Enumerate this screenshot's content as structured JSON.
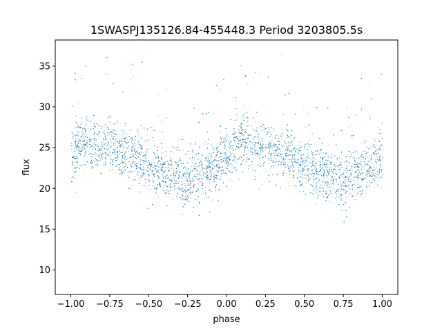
{
  "chart_data": {
    "type": "scatter",
    "title": "1SWASPJ135126.84-455448.3 Period 3203805.5s",
    "xlabel": "phase",
    "ylabel": "flux",
    "xlim": [
      -1.1,
      1.1
    ],
    "ylim": [
      7,
      38.2
    ],
    "xticks": [
      -1.0,
      -0.75,
      -0.5,
      -0.25,
      0.0,
      0.25,
      0.5,
      0.75,
      1.0
    ],
    "xtick_labels": [
      "−1.00",
      "−0.75",
      "−0.50",
      "−0.25",
      "0.00",
      "0.25",
      "0.50",
      "0.75",
      "1.00"
    ],
    "yticks": [
      10,
      15,
      20,
      25,
      30,
      35
    ],
    "ytick_labels": [
      "10",
      "15",
      "20",
      "25",
      "30",
      "35"
    ],
    "grid": false,
    "marker_color": "#1f77b4",
    "series": [
      {
        "x": [
          -1.0,
          -0.95,
          -0.9,
          -0.85,
          -0.8,
          -0.75,
          -0.7,
          -0.65,
          -0.6,
          -0.55,
          -0.5,
          -0.45,
          -0.4,
          -0.35,
          -0.3,
          -0.25,
          -0.2,
          -0.15,
          -0.1,
          -0.05,
          0.0,
          0.05,
          0.1,
          0.15,
          0.2,
          0.25,
          0.3,
          0.35,
          0.4,
          0.45,
          0.5,
          0.55,
          0.6,
          0.65,
          0.7,
          0.75,
          0.8,
          0.85,
          0.9,
          0.95,
          1.0
        ],
        "y": [
          24.0,
          25.5,
          26.0,
          25.5,
          25.0,
          25.5,
          25.0,
          24.5,
          24.0,
          23.5,
          23.0,
          22.5,
          22.0,
          21.5,
          21.5,
          21.0,
          21.5,
          22.0,
          22.5,
          23.0,
          24.0,
          25.5,
          26.0,
          25.5,
          25.0,
          25.5,
          25.0,
          24.5,
          24.0,
          23.5,
          23.0,
          22.5,
          22.0,
          21.5,
          21.5,
          21.0,
          21.5,
          22.0,
          22.5,
          23.0,
          24.0
        ]
      }
    ]
  }
}
